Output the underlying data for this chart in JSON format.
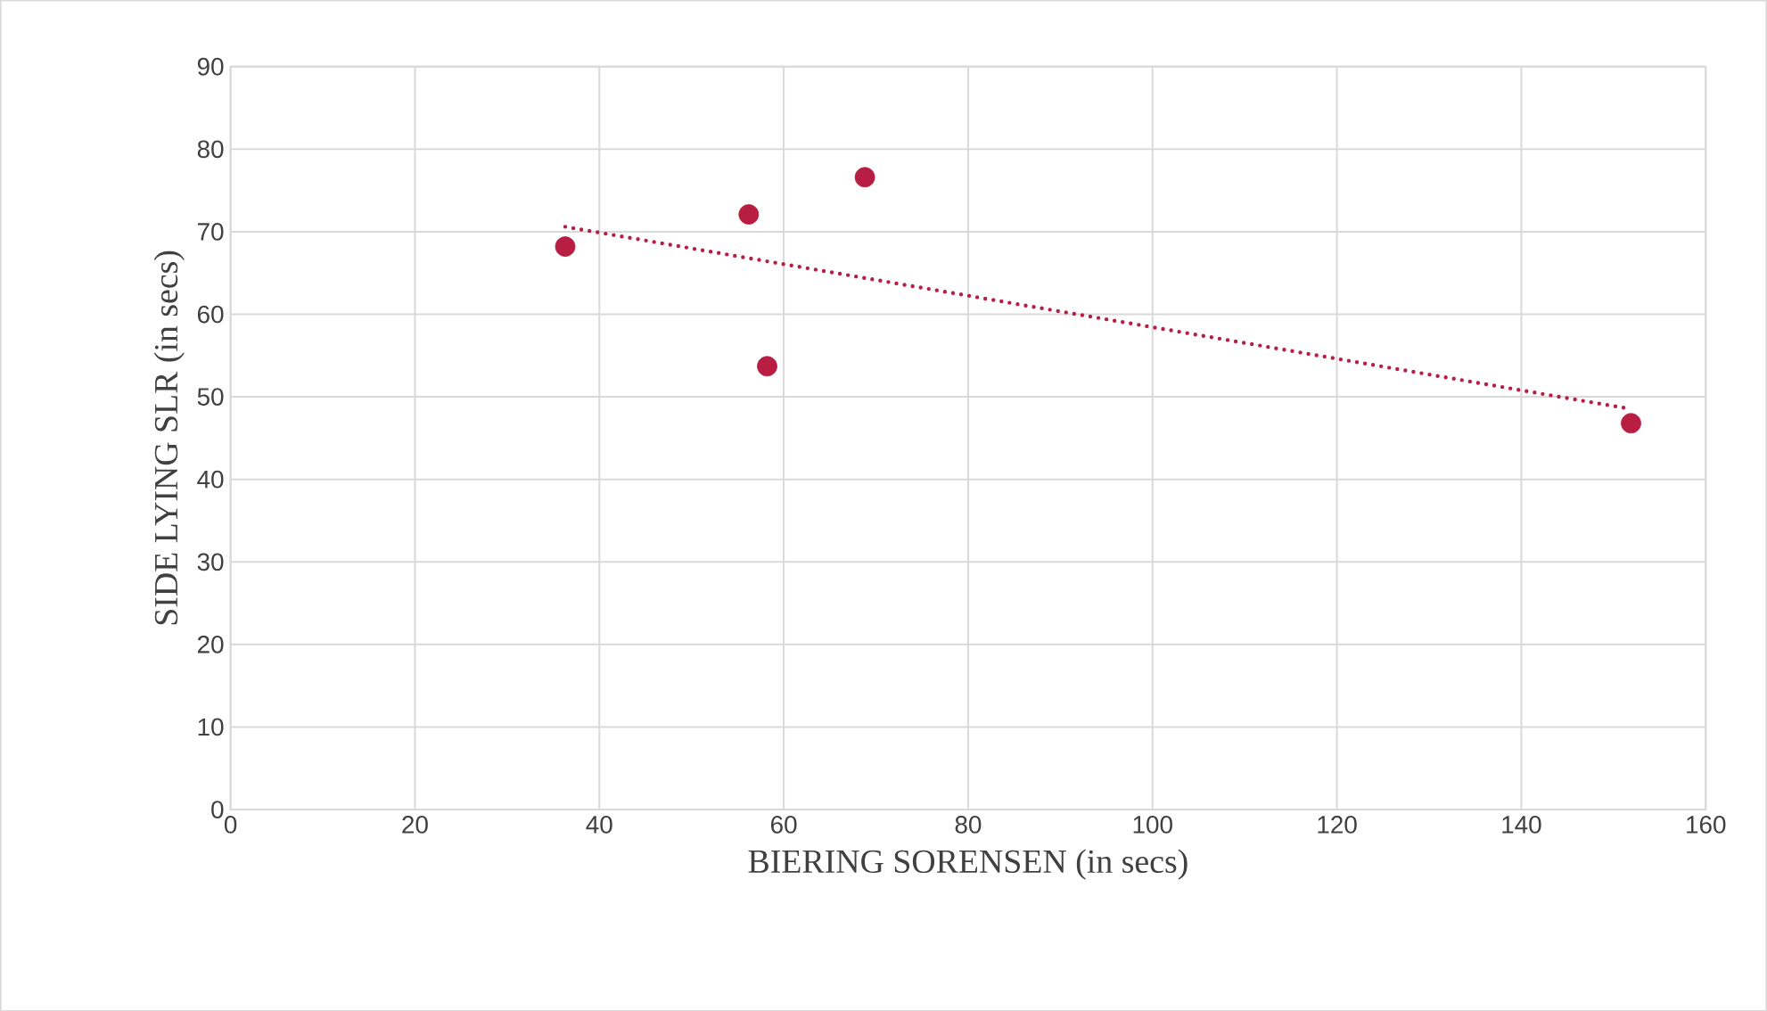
{
  "chart_data": {
    "type": "scatter",
    "xlabel": "BIERING SORENSEN (in secs)",
    "ylabel": "SIDE LYING SLR (in secs)",
    "xlim": [
      0,
      160
    ],
    "xticks": [
      0,
      20,
      40,
      60,
      80,
      100,
      120,
      140,
      160
    ],
    "ylim": [
      0,
      90
    ],
    "yticks": [
      0,
      10,
      20,
      30,
      40,
      50,
      60,
      70,
      80,
      90
    ],
    "grid": true,
    "marker": "circle",
    "series": [
      {
        "color": "#b81d42",
        "x": [
          36.3,
          56.2,
          58.2,
          68.8,
          151.9
        ],
        "values": [
          68.2,
          72.1,
          53.7,
          76.6,
          46.8
        ]
      },
      {
        "type": "line",
        "color": "#b81d42",
        "line_style": "dotted",
        "marker": "none",
        "x": [
          36.3,
          151.5
        ],
        "values": [
          70.6,
          48.6
        ]
      }
    ]
  }
}
